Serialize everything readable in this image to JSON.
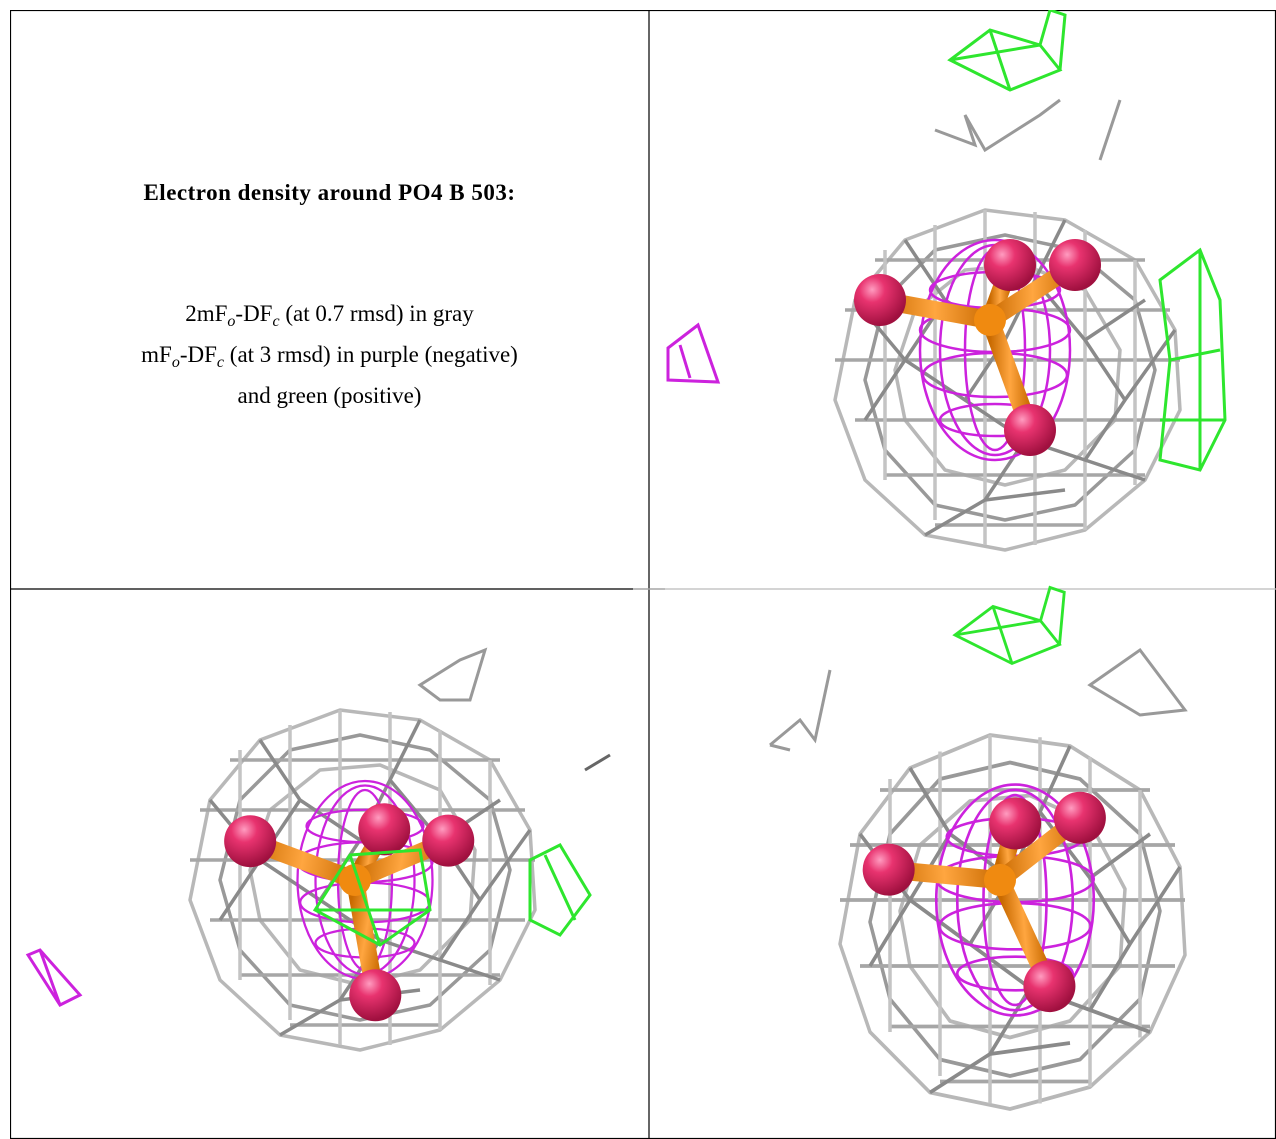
{
  "title": "Electron density around PO4 B 503:",
  "caption": [
    [
      "2mF",
      "o",
      "-DF",
      "c",
      " (at 0.7 rmsd) in gray"
    ],
    [
      "mF",
      "o",
      "-DF",
      "c",
      " (at 3 rmsd) in purple (negative)"
    ],
    [
      "and green (positive)"
    ]
  ]
}
